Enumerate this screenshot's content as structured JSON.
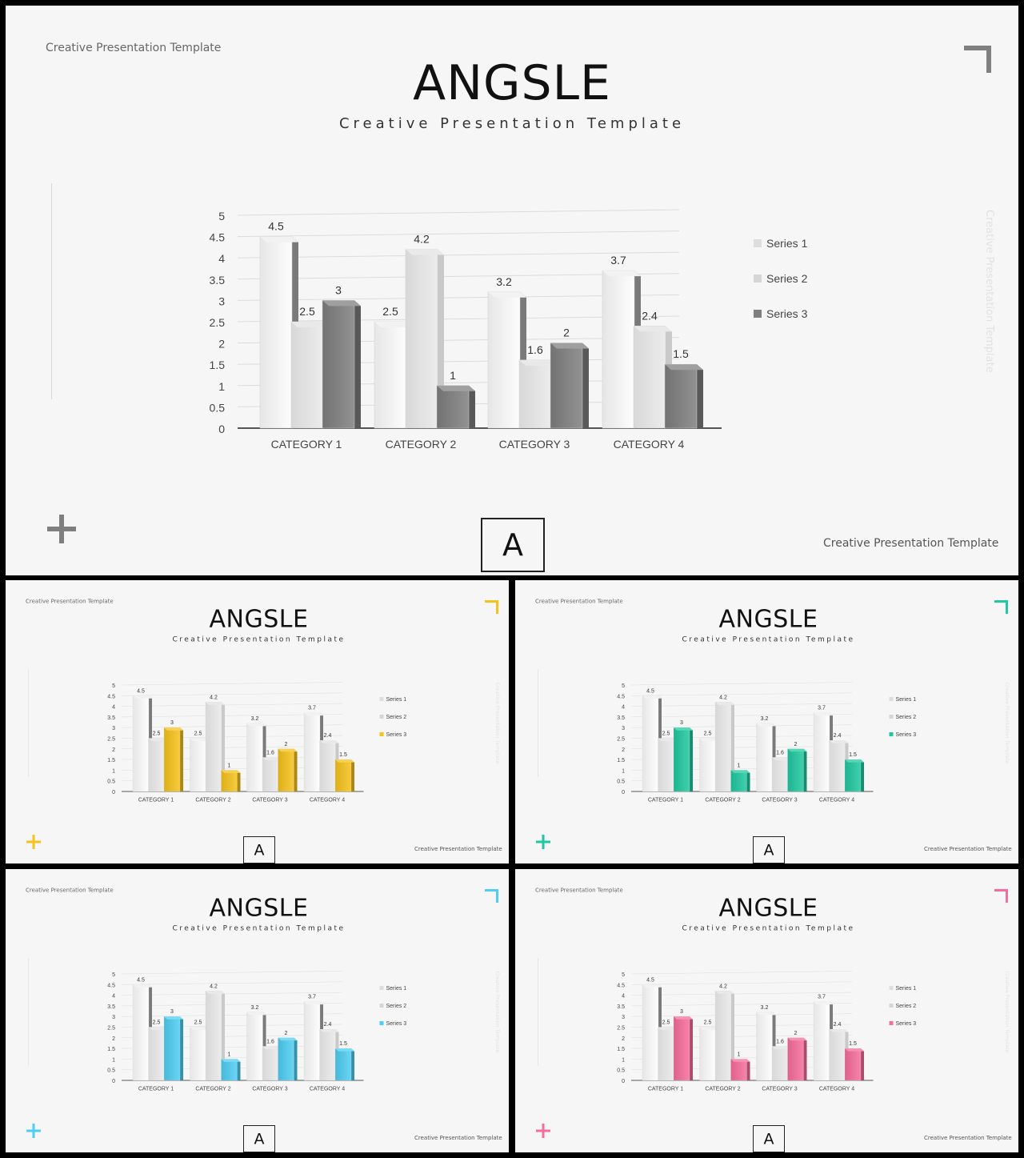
{
  "slide": {
    "top_label": "Creative Presentation Template",
    "title": "ANGSLE",
    "subtitle": "Creative Presentation Template",
    "vertical_text": "Creative Presentation Template",
    "footer_label": "Creative Presentation Template",
    "box_letter": "A"
  },
  "chart_data": {
    "type": "bar",
    "categories": [
      "CATEGORY 1",
      "CATEGORY 2",
      "CATEGORY 3",
      "CATEGORY 4"
    ],
    "series": [
      {
        "name": "Series 1",
        "values": [
          4.5,
          2.5,
          3.2,
          3.7
        ]
      },
      {
        "name": "Series 2",
        "values": [
          2.5,
          4.2,
          1.6,
          2.4
        ]
      },
      {
        "name": "Series 3",
        "values": [
          3,
          1,
          2,
          1.5
        ]
      }
    ],
    "yticks": [
      "0",
      "0.5",
      "1",
      "1.5",
      "2",
      "2.5",
      "3",
      "3.5",
      "4",
      "4.5",
      "5"
    ],
    "ylim": [
      0,
      5
    ],
    "grid": true,
    "legend": "right",
    "three_d": true
  },
  "themes": [
    {
      "accent": "#7f7f7f"
    },
    {
      "accent": "#f5c21b"
    },
    {
      "accent": "#1fc8a0"
    },
    {
      "accent": "#4fcdf2"
    },
    {
      "accent": "#f56d9b"
    }
  ]
}
